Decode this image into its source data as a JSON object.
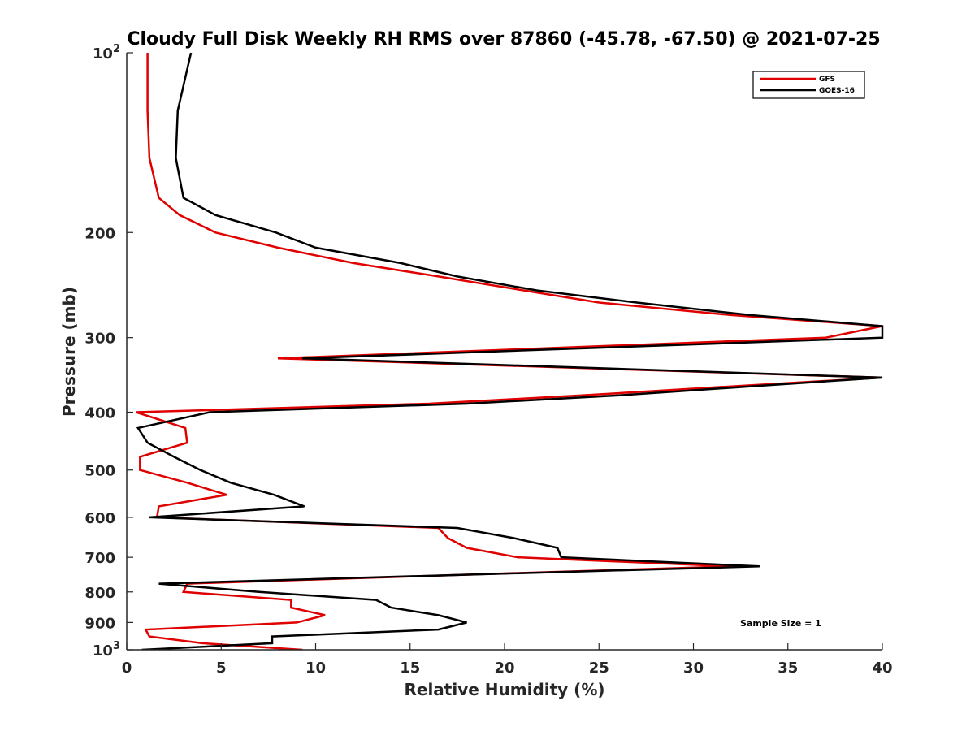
{
  "chart_data": {
    "type": "line",
    "title": "Cloudy Full Disk Weekly RH RMS over 87860 (-45.78, -67.50) @ 2021-07-25",
    "xlabel": "Relative Humidity (%)",
    "ylabel": "Pressure (mb)",
    "xlim": [
      0,
      40
    ],
    "ylim": [
      100,
      1000
    ],
    "yscale": "log",
    "y_reversed": true,
    "x_ticks": [
      0,
      5,
      10,
      15,
      20,
      25,
      30,
      35,
      40
    ],
    "y_ticks": [
      {
        "value": 100,
        "label": "10",
        "sup": "2"
      },
      {
        "value": 200,
        "label": "200"
      },
      {
        "value": 300,
        "label": "300"
      },
      {
        "value": 400,
        "label": "400"
      },
      {
        "value": 500,
        "label": "500"
      },
      {
        "value": 600,
        "label": "600"
      },
      {
        "value": 700,
        "label": "700"
      },
      {
        "value": 800,
        "label": "800"
      },
      {
        "value": 900,
        "label": "900"
      },
      {
        "value": 1000,
        "label": "10",
        "sup": "3"
      }
    ],
    "grid": false,
    "legend_position": "top-right",
    "annotation": "Sample Size = 1",
    "series": [
      {
        "name": "GFS",
        "color": "#e00000",
        "points": [
          [
            1.1,
            100
          ],
          [
            1.1,
            125
          ],
          [
            1.2,
            150
          ],
          [
            1.7,
            175
          ],
          [
            2.8,
            187
          ],
          [
            4.7,
            200
          ],
          [
            8.0,
            212
          ],
          [
            12.0,
            225
          ],
          [
            16.5,
            237
          ],
          [
            21.0,
            250
          ],
          [
            25.0,
            262
          ],
          [
            32.0,
            275
          ],
          [
            40.0,
            287
          ],
          [
            37.0,
            300
          ],
          [
            8.0,
            325
          ],
          [
            40.0,
            350
          ],
          [
            32.0,
            362
          ],
          [
            24.0,
            375
          ],
          [
            16.0,
            387
          ],
          [
            0.5,
            400
          ],
          [
            3.1,
            425
          ],
          [
            3.2,
            450
          ],
          [
            0.7,
            475
          ],
          [
            0.7,
            500
          ],
          [
            3.2,
            525
          ],
          [
            5.3,
            550
          ],
          [
            1.7,
            575
          ],
          [
            1.6,
            600
          ],
          [
            16.5,
            625
          ],
          [
            17.0,
            650
          ],
          [
            18.0,
            675
          ],
          [
            20.7,
            700
          ],
          [
            32.0,
            725
          ],
          [
            17.0,
            750
          ],
          [
            3.2,
            775
          ],
          [
            3.0,
            800
          ],
          [
            8.7,
            825
          ],
          [
            8.7,
            850
          ],
          [
            10.5,
            875
          ],
          [
            9.0,
            900
          ],
          [
            1.0,
            925
          ],
          [
            1.2,
            950
          ],
          [
            4.0,
            975
          ],
          [
            9.3,
            1000
          ]
        ]
      },
      {
        "name": "GOES-16",
        "color": "#000000",
        "points": [
          [
            3.4,
            100
          ],
          [
            2.7,
            125
          ],
          [
            2.6,
            150
          ],
          [
            3.0,
            175
          ],
          [
            4.7,
            187
          ],
          [
            7.9,
            200
          ],
          [
            10.0,
            212
          ],
          [
            14.5,
            225
          ],
          [
            17.5,
            237
          ],
          [
            21.7,
            250
          ],
          [
            27.0,
            262
          ],
          [
            33.0,
            275
          ],
          [
            40.0,
            287
          ],
          [
            40.0,
            300
          ],
          [
            9.3,
            325
          ],
          [
            40.0,
            350
          ],
          [
            33.0,
            362
          ],
          [
            26.0,
            375
          ],
          [
            18.0,
            387
          ],
          [
            4.4,
            400
          ],
          [
            0.6,
            425
          ],
          [
            1.1,
            450
          ],
          [
            2.5,
            475
          ],
          [
            3.9,
            500
          ],
          [
            5.5,
            525
          ],
          [
            7.8,
            550
          ],
          [
            9.4,
            575
          ],
          [
            1.2,
            600
          ],
          [
            17.5,
            625
          ],
          [
            20.5,
            650
          ],
          [
            22.8,
            675
          ],
          [
            23.0,
            700
          ],
          [
            33.5,
            725
          ],
          [
            17.0,
            750
          ],
          [
            1.7,
            775
          ],
          [
            7.0,
            800
          ],
          [
            13.2,
            825
          ],
          [
            14.0,
            850
          ],
          [
            16.5,
            875
          ],
          [
            18.0,
            900
          ],
          [
            16.5,
            925
          ],
          [
            7.7,
            950
          ],
          [
            7.7,
            975
          ],
          [
            0.8,
            1000
          ]
        ]
      }
    ]
  }
}
